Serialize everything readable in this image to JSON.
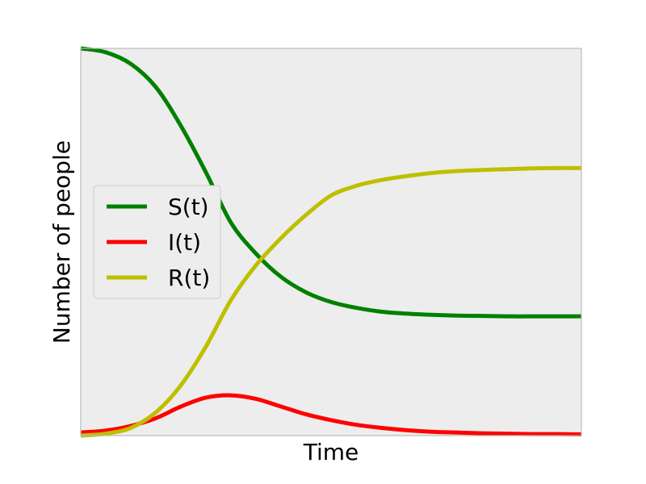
{
  "chart_data": {
    "type": "line",
    "title": "",
    "xlabel": "Time",
    "ylabel": "Number of people",
    "xlim": [
      0,
      1
    ],
    "ylim": [
      0,
      1
    ],
    "grid": false,
    "ticks_visible": false,
    "legend_placement": "center-left",
    "background_color": "#ededed",
    "frame_color": "#bbbbbb",
    "x": [
      0,
      0.05,
      0.1,
      0.15,
      0.2,
      0.25,
      0.3,
      0.35,
      0.4,
      0.45,
      0.5,
      0.55,
      0.6,
      0.65,
      0.7,
      0.75,
      0.8,
      0.85,
      0.9,
      0.95,
      1.0
    ],
    "series": [
      {
        "name": "S(t)",
        "color": "#008000",
        "values": [
          1.0,
          0.99,
          0.96,
          0.9,
          0.8,
          0.68,
          0.55,
          0.47,
          0.41,
          0.37,
          0.345,
          0.33,
          0.32,
          0.315,
          0.312,
          0.31,
          0.309,
          0.308,
          0.308,
          0.308,
          0.308
        ]
      },
      {
        "name": "I(t)",
        "color": "#ff0000",
        "values": [
          0.008,
          0.013,
          0.025,
          0.045,
          0.075,
          0.098,
          0.104,
          0.095,
          0.075,
          0.055,
          0.04,
          0.028,
          0.02,
          0.014,
          0.01,
          0.008,
          0.006,
          0.005,
          0.004,
          0.004,
          0.003
        ]
      },
      {
        "name": "R(t)",
        "color": "#bfbf00",
        "values": [
          0.0,
          0.005,
          0.02,
          0.06,
          0.13,
          0.23,
          0.35,
          0.44,
          0.51,
          0.57,
          0.62,
          0.645,
          0.66,
          0.67,
          0.678,
          0.683,
          0.686,
          0.688,
          0.69,
          0.691,
          0.691
        ]
      }
    ]
  }
}
